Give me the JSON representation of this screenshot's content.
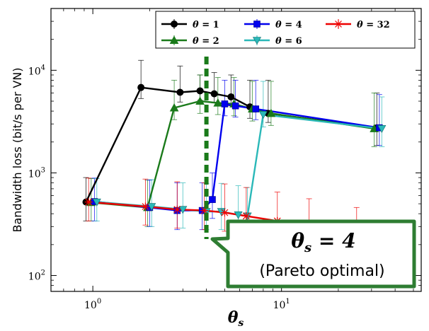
{
  "chart_data": {
    "type": "line",
    "xscale": "log",
    "yscale": "log",
    "xlim": [
      0.6,
      55
    ],
    "ylim": [
      70,
      40000
    ],
    "x_ticks": [
      1,
      10
    ],
    "x_tick_labels": [
      "10^0",
      "10^1"
    ],
    "y_ticks": [
      100,
      1000,
      10000
    ],
    "y_tick_labels": [
      "10^2",
      "10^3",
      "10^4"
    ],
    "xlabel": "θs",
    "ylabel": "Bandwidth loss (bit/s per VN)",
    "legend_position": "top-right",
    "series": [
      {
        "name": "θ = 1",
        "color": "#000000",
        "marker": "circle",
        "x": [
          0.92,
          1.8,
          2.9,
          3.7,
          4.4,
          5.4,
          6.8,
          8.5,
          32
        ],
        "y": [
          520,
          6800,
          6100,
          6300,
          5900,
          5500,
          4400,
          3800,
          2750
        ],
        "err_lo": [
          340,
          5300,
          4900,
          5100,
          4800,
          4500,
          3400,
          3100,
          1850
        ],
        "err_hi": [
          900,
          12500,
          11000,
          9000,
          9500,
          9000,
          8000,
          8000,
          6000
        ]
      },
      {
        "name": "θ = 2",
        "color": "#1a7a1a",
        "marker": "triangle-up",
        "x": [
          0.98,
          1.95,
          2.7,
          3.7,
          4.6,
          5.6,
          7.0,
          8.8,
          31
        ],
        "y": [
          515,
          460,
          4300,
          5000,
          4800,
          4700,
          4200,
          3800,
          2700
        ],
        "err_lo": [
          340,
          300,
          3300,
          3800,
          3700,
          3600,
          3200,
          2900,
          1800
        ],
        "err_hi": [
          880,
          850,
          8000,
          9000,
          8500,
          8500,
          7800,
          7800,
          6000
        ]
      },
      {
        "name": "θ = 4",
        "color": "#0000ee",
        "marker": "square",
        "x": [
          1.02,
          2.0,
          2.8,
          3.8,
          4.3,
          5.0,
          5.7,
          7.3,
          33
        ],
        "y": [
          525,
          460,
          430,
          430,
          550,
          4700,
          4500,
          4200,
          2750
        ],
        "err_lo": [
          340,
          300,
          280,
          280,
          360,
          3600,
          3500,
          3300,
          1850
        ],
        "err_hi": [
          890,
          850,
          800,
          800,
          1000,
          8000,
          8000,
          8000,
          5800
        ]
      },
      {
        "name": "θ = 6",
        "color": "#2ab8b8",
        "marker": "triangle-down",
        "x": [
          1.05,
          2.05,
          3.0,
          4.0,
          4.8,
          5.9,
          6.6,
          8.0,
          34
        ],
        "y": [
          520,
          470,
          440,
          420,
          420,
          390,
          380,
          3700,
          2700
        ],
        "err_lo": [
          340,
          300,
          290,
          280,
          280,
          260,
          250,
          2800,
          1800
        ],
        "err_hi": [
          880,
          860,
          800,
          790,
          790,
          750,
          720,
          7800,
          5500
        ]
      },
      {
        "name": "θ = 32",
        "color": "#ee0000",
        "marker": "x",
        "x": [
          0.95,
          1.9,
          2.8,
          3.9,
          5.0,
          6.5,
          9.5,
          14,
          25
        ],
        "y": [
          520,
          470,
          440,
          430,
          410,
          380,
          340,
          290,
          210
        ],
        "err_lo": [
          340,
          310,
          290,
          280,
          270,
          250,
          220,
          190,
          140
        ],
        "err_hi": [
          890,
          870,
          820,
          800,
          780,
          720,
          650,
          560,
          460
        ]
      }
    ],
    "annotations": [
      {
        "type": "vline",
        "x": 4,
        "color": "#1a7a1a",
        "style": "dashed"
      },
      {
        "type": "callout",
        "title": "θs = 4",
        "subtitle": "(Pareto optimal)",
        "border_color": "#2e7d32"
      }
    ]
  }
}
